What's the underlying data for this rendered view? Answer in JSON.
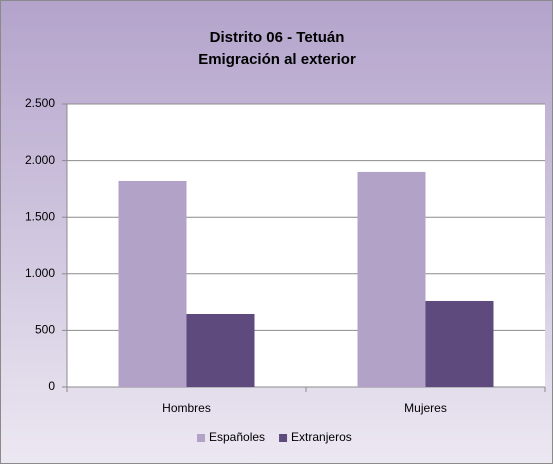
{
  "chart_data": {
    "type": "bar",
    "title": [
      "Distrito 06 - Tetuán",
      "Emigración al exterior"
    ],
    "categories": [
      "Hombres",
      "Mujeres"
    ],
    "series": [
      {
        "name": "Españoles",
        "color": "#b3a2c8",
        "values": [
          1820,
          1900
        ]
      },
      {
        "name": "Extranjeros",
        "color": "#5e4a7c",
        "values": [
          645,
          760
        ]
      }
    ],
    "ylim": [
      0,
      2500
    ],
    "yticks": [
      0,
      500,
      {
        "value": 1000,
        "label": "1.000"
      },
      {
        "value": 1500,
        "label": "1.500"
      },
      {
        "value": 2000,
        "label": "2.000"
      },
      {
        "value": 2500,
        "label": "2.500"
      }
    ],
    "grid": true,
    "legend": "bottom"
  }
}
